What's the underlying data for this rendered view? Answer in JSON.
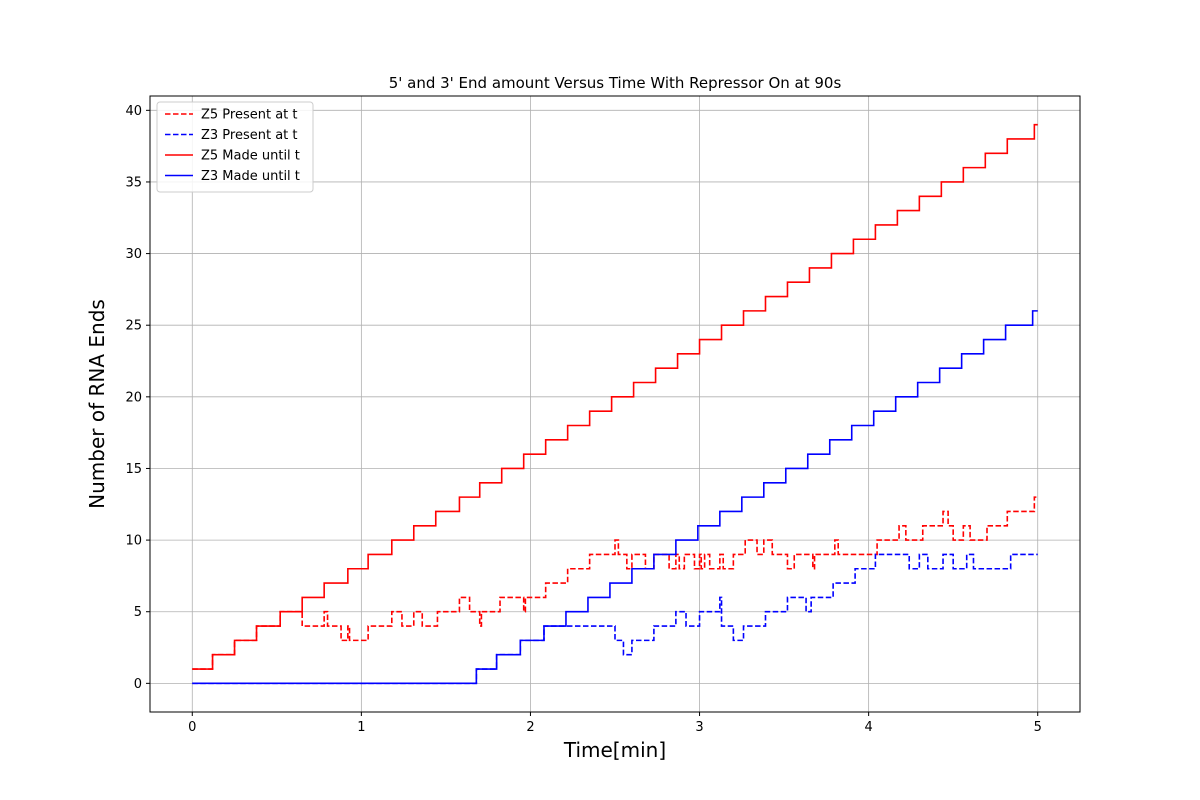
{
  "chart_data": {
    "type": "line",
    "title": "5' and 3' End amount Versus Time With Repressor On at 90s",
    "xlabel": "Time[min]",
    "ylabel": "Number of RNA Ends",
    "xlim": [
      -0.25,
      5.25
    ],
    "ylim": [
      -2,
      41
    ],
    "xticks": [
      0,
      1,
      2,
      3,
      4,
      5
    ],
    "yticks": [
      0,
      5,
      10,
      15,
      20,
      25,
      30,
      35,
      40
    ],
    "grid": true,
    "legend_position": "upper-left",
    "series": [
      {
        "name": "Z5 Present at t",
        "color": "#ff0000",
        "dash": true,
        "steps": [
          [
            0,
            1
          ],
          [
            0.12,
            2
          ],
          [
            0.25,
            3
          ],
          [
            0.38,
            4
          ],
          [
            0.52,
            5
          ],
          [
            0.65,
            4
          ],
          [
            0.78,
            5
          ],
          [
            0.8,
            4
          ],
          [
            0.88,
            3
          ],
          [
            0.92,
            4
          ],
          [
            0.93,
            3
          ],
          [
            1.04,
            4
          ],
          [
            1.18,
            5
          ],
          [
            1.24,
            4
          ],
          [
            1.31,
            5
          ],
          [
            1.36,
            4
          ],
          [
            1.45,
            5
          ],
          [
            1.58,
            6
          ],
          [
            1.64,
            5
          ],
          [
            1.7,
            4
          ],
          [
            1.71,
            5
          ],
          [
            1.82,
            6
          ],
          [
            1.96,
            5
          ],
          [
            1.97,
            6
          ],
          [
            2.09,
            7
          ],
          [
            2.22,
            8
          ],
          [
            2.35,
            9
          ],
          [
            2.5,
            10
          ],
          [
            2.52,
            9
          ],
          [
            2.57,
            8
          ],
          [
            2.6,
            9
          ],
          [
            2.68,
            8
          ],
          [
            2.73,
            9
          ],
          [
            2.82,
            8
          ],
          [
            2.86,
            9
          ],
          [
            2.88,
            8
          ],
          [
            2.91,
            9
          ],
          [
            2.97,
            8
          ],
          [
            3.0,
            9
          ],
          [
            3.01,
            8
          ],
          [
            3.03,
            9
          ],
          [
            3.06,
            8
          ],
          [
            3.12,
            9
          ],
          [
            3.14,
            8
          ],
          [
            3.2,
            9
          ],
          [
            3.27,
            10
          ],
          [
            3.34,
            9
          ],
          [
            3.38,
            10
          ],
          [
            3.43,
            9
          ],
          [
            3.52,
            8
          ],
          [
            3.56,
            9
          ],
          [
            3.67,
            8
          ],
          [
            3.68,
            9
          ],
          [
            3.8,
            10
          ],
          [
            3.82,
            9
          ],
          [
            4.05,
            10
          ],
          [
            4.18,
            11
          ],
          [
            4.22,
            10
          ],
          [
            4.32,
            11
          ],
          [
            4.44,
            12
          ],
          [
            4.47,
            11
          ],
          [
            4.5,
            10
          ],
          [
            4.56,
            11
          ],
          [
            4.6,
            10
          ],
          [
            4.7,
            11
          ],
          [
            4.82,
            12
          ],
          [
            4.98,
            13
          ],
          [
            5.0,
            13
          ]
        ]
      },
      {
        "name": "Z3 Present at t",
        "color": "#0000ff",
        "dash": true,
        "steps": [
          [
            0,
            0
          ],
          [
            1.68,
            1
          ],
          [
            1.8,
            2
          ],
          [
            1.94,
            3
          ],
          [
            2.08,
            4
          ],
          [
            2.5,
            3
          ],
          [
            2.55,
            2
          ],
          [
            2.6,
            3
          ],
          [
            2.73,
            4
          ],
          [
            2.86,
            5
          ],
          [
            2.92,
            4
          ],
          [
            3.0,
            5
          ],
          [
            3.12,
            6
          ],
          [
            3.13,
            4
          ],
          [
            3.2,
            3
          ],
          [
            3.26,
            4
          ],
          [
            3.39,
            5
          ],
          [
            3.52,
            6
          ],
          [
            3.63,
            5
          ],
          [
            3.66,
            6
          ],
          [
            3.79,
            7
          ],
          [
            3.92,
            8
          ],
          [
            4.04,
            9
          ],
          [
            4.24,
            8
          ],
          [
            4.3,
            9
          ],
          [
            4.35,
            8
          ],
          [
            4.44,
            9
          ],
          [
            4.5,
            8
          ],
          [
            4.58,
            9
          ],
          [
            4.62,
            8
          ],
          [
            4.84,
            9
          ],
          [
            5.0,
            9
          ]
        ]
      },
      {
        "name": "Z5 Made until t",
        "color": "#ff0000",
        "dash": false,
        "steps": [
          [
            0,
            1
          ],
          [
            0.12,
            2
          ],
          [
            0.25,
            3
          ],
          [
            0.38,
            4
          ],
          [
            0.52,
            5
          ],
          [
            0.65,
            6
          ],
          [
            0.78,
            7
          ],
          [
            0.92,
            8
          ],
          [
            1.04,
            9
          ],
          [
            1.18,
            10
          ],
          [
            1.31,
            11
          ],
          [
            1.44,
            12
          ],
          [
            1.58,
            13
          ],
          [
            1.7,
            14
          ],
          [
            1.83,
            15
          ],
          [
            1.96,
            16
          ],
          [
            2.09,
            17
          ],
          [
            2.22,
            18
          ],
          [
            2.35,
            19
          ],
          [
            2.48,
            20
          ],
          [
            2.61,
            21
          ],
          [
            2.74,
            22
          ],
          [
            2.87,
            23
          ],
          [
            3.0,
            24
          ],
          [
            3.13,
            25
          ],
          [
            3.26,
            26
          ],
          [
            3.39,
            27
          ],
          [
            3.52,
            28
          ],
          [
            3.65,
            29
          ],
          [
            3.78,
            30
          ],
          [
            3.91,
            31
          ],
          [
            4.04,
            32
          ],
          [
            4.17,
            33
          ],
          [
            4.3,
            34
          ],
          [
            4.43,
            35
          ],
          [
            4.56,
            36
          ],
          [
            4.69,
            37
          ],
          [
            4.82,
            38
          ],
          [
            4.98,
            39
          ],
          [
            5.0,
            39
          ]
        ]
      },
      {
        "name": "Z3 Made until t",
        "color": "#0000ff",
        "dash": false,
        "steps": [
          [
            0,
            0
          ],
          [
            1.68,
            1
          ],
          [
            1.8,
            2
          ],
          [
            1.94,
            3
          ],
          [
            2.08,
            4
          ],
          [
            2.21,
            5
          ],
          [
            2.34,
            6
          ],
          [
            2.47,
            7
          ],
          [
            2.6,
            8
          ],
          [
            2.73,
            9
          ],
          [
            2.86,
            10
          ],
          [
            2.99,
            11
          ],
          [
            3.12,
            12
          ],
          [
            3.25,
            13
          ],
          [
            3.38,
            14
          ],
          [
            3.51,
            15
          ],
          [
            3.64,
            16
          ],
          [
            3.77,
            17
          ],
          [
            3.9,
            18
          ],
          [
            4.03,
            19
          ],
          [
            4.16,
            20
          ],
          [
            4.29,
            21
          ],
          [
            4.42,
            22
          ],
          [
            4.55,
            23
          ],
          [
            4.68,
            24
          ],
          [
            4.81,
            25
          ],
          [
            4.97,
            26
          ],
          [
            5.0,
            26
          ]
        ]
      }
    ]
  }
}
